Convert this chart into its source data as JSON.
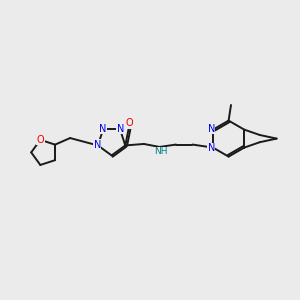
{
  "background_color": "#ebebeb",
  "bond_color": "#1a1a1a",
  "N_color": "#0000ee",
  "O_color": "#ee0000",
  "NH_color": "#008080",
  "figsize": [
    3.0,
    3.0
  ],
  "dpi": 100,
  "xlim": [
    0,
    10
  ],
  "ylim": [
    0,
    10
  ],
  "lw": 1.4,
  "fs": 7.0
}
